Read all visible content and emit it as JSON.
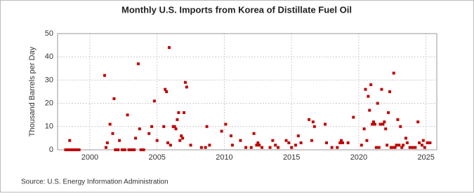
{
  "chart_data": {
    "type": "scatter",
    "title": "Monthly U.S. Imports from Korea of Distillate Fuel Oil",
    "y_label": "Thousand Barrels per Day",
    "source": "Source: U.S. Energy Information Administration",
    "color": "#c00000",
    "grid": true,
    "xlim": [
      1997.6,
      2025.8
    ],
    "xticks": [
      2000,
      2005,
      2010,
      2015,
      2020,
      2025
    ],
    "ylim": [
      0,
      50
    ],
    "yticks": [
      0,
      10,
      20,
      30,
      40,
      50
    ],
    "x": [
      1998.2,
      1998.4,
      1998.5,
      1998.6,
      1998.8,
      1999.0,
      1999.2,
      2001.1,
      2001.2,
      2001.3,
      2001.5,
      2001.7,
      2001.8,
      2001.9,
      2002.1,
      2002.2,
      2002.4,
      2002.6,
      2002.8,
      2002.9,
      2003.1,
      2003.3,
      2003.4,
      2003.6,
      2003.7,
      2003.8,
      2004.0,
      2004.4,
      2004.6,
      2004.8,
      2005.0,
      2005.5,
      2005.6,
      2005.7,
      2005.8,
      2005.9,
      2006.0,
      2006.2,
      2006.3,
      2006.4,
      2006.5,
      2006.6,
      2006.7,
      2006.8,
      2006.9,
      2007.0,
      2007.1,
      2007.2,
      2007.5,
      2008.3,
      2008.6,
      2008.7,
      2008.9,
      2009.8,
      2010.1,
      2010.5,
      2010.6,
      2011.2,
      2011.6,
      2012.0,
      2012.2,
      2012.4,
      2012.5,
      2012.6,
      2012.8,
      2013.4,
      2013.6,
      2013.8,
      2014.0,
      2014.6,
      2014.8,
      2015.0,
      2015.3,
      2015.5,
      2015.7,
      2016.3,
      2016.5,
      2016.6,
      2016.7,
      2017.5,
      2017.6,
      2018.0,
      2018.4,
      2018.6,
      2018.7,
      2018.8,
      2019.2,
      2019.6,
      2020.2,
      2020.4,
      2020.5,
      2020.6,
      2020.7,
      2020.8,
      2020.9,
      2021.0,
      2021.1,
      2021.2,
      2021.3,
      2021.4,
      2021.5,
      2021.6,
      2021.7,
      2021.8,
      2021.9,
      2022.0,
      2022.1,
      2022.2,
      2022.3,
      2022.4,
      2022.5,
      2022.6,
      2022.7,
      2022.8,
      2022.9,
      2023.0,
      2023.1,
      2023.2,
      2023.3,
      2023.5,
      2023.6,
      2023.8,
      2024.0,
      2024.2,
      2024.4,
      2024.5,
      2024.7,
      2024.8,
      2024.9,
      2025.1,
      2025.3
    ],
    "values": [
      0,
      0,
      4,
      0,
      0,
      0,
      0,
      32,
      1,
      3,
      11,
      7,
      22,
      0,
      0,
      4,
      0,
      0,
      15,
      0,
      0,
      0,
      5,
      37,
      9,
      0,
      0,
      7,
      10,
      21,
      4,
      10,
      26,
      25,
      3,
      44,
      2,
      10,
      10,
      9,
      13,
      16,
      4,
      6,
      5,
      16,
      29,
      27,
      2,
      1,
      1,
      10,
      2,
      8,
      11,
      6,
      2,
      4,
      1,
      1,
      7,
      2,
      3,
      2,
      1,
      1,
      4,
      2,
      1,
      4,
      3,
      1,
      2,
      6,
      3,
      13,
      4,
      12,
      10,
      11,
      3,
      1,
      1,
      3,
      4,
      3,
      3,
      14,
      2,
      9,
      26,
      4,
      23,
      17,
      28,
      11,
      12,
      11,
      1,
      20,
      1,
      11,
      26,
      11,
      12,
      9,
      2,
      16,
      25,
      1,
      1,
      33,
      1,
      2,
      13,
      2,
      10,
      1,
      2,
      5,
      3,
      1,
      1,
      1,
      12,
      3,
      2,
      4,
      1,
      3,
      3
    ]
  }
}
